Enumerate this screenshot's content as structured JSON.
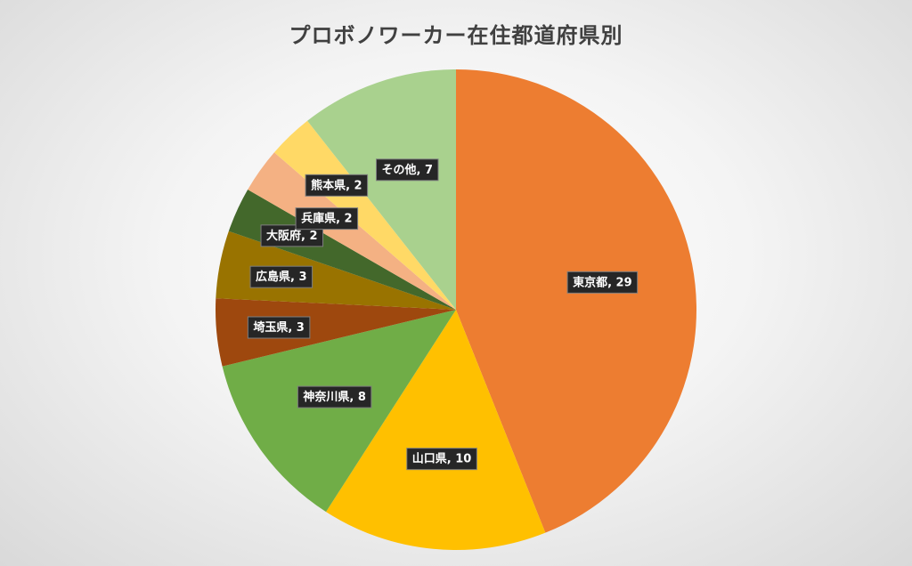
{
  "chart_data": {
    "type": "pie",
    "title": "プロボノワーカー在住都道府県別",
    "start_angle_deg": 0,
    "direction": "clockwise",
    "slices": [
      {
        "label": "東京都",
        "value": 29,
        "color": "#ED7D31",
        "data_label": "東京都, 29"
      },
      {
        "label": "山口県",
        "value": 10,
        "color": "#FFC000",
        "data_label": "山口県, 10"
      },
      {
        "label": "神奈川県",
        "value": 8,
        "color": "#70AD47",
        "data_label": "神奈川県, 8"
      },
      {
        "label": "埼玉県",
        "value": 3,
        "color": "#9E480E",
        "data_label": "埼玉県, 3"
      },
      {
        "label": "広島県",
        "value": 3,
        "color": "#997300",
        "data_label": "広島県, 3"
      },
      {
        "label": "大阪府",
        "value": 2,
        "color": "#43682B",
        "data_label": "大阪府, 2"
      },
      {
        "label": "兵庫県",
        "value": 2,
        "color": "#F4B183",
        "data_label": "兵庫県, 2"
      },
      {
        "label": "熊本県",
        "value": 2,
        "color": "#FFD966",
        "data_label": "熊本県, 2"
      },
      {
        "label": "その他",
        "value": 7,
        "color": "#A9D18E",
        "data_label": "その他, 7"
      }
    ]
  }
}
